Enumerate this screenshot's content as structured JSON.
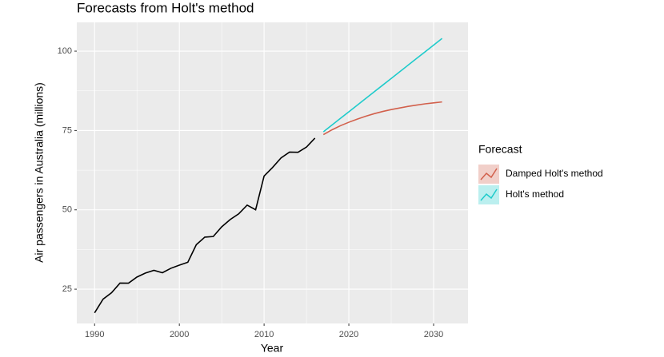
{
  "chart_data": {
    "type": "line",
    "title": "Forecasts from Holt's method",
    "x_label": "Year",
    "y_label": "Air passengers in Australia (millions)",
    "legend_title": "Forecast",
    "legend_position": "right",
    "grid": true,
    "xlim": [
      1987.9,
      2034.06
    ],
    "ylim": [
      14.2,
      109.07
    ],
    "xticks": [
      1990,
      2000,
      2010,
      2020,
      2030
    ],
    "yticks": [
      25,
      50,
      75,
      100
    ],
    "series": [
      {
        "color": "#000000",
        "x": [
          1990,
          1991,
          1992,
          1993,
          1994,
          1995,
          1996,
          1997,
          1998,
          1999,
          2000,
          2001,
          2002,
          2003,
          2004,
          2005,
          2006,
          2007,
          2008,
          2009,
          2010,
          2011,
          2012,
          2013,
          2014,
          2015,
          2016
        ],
        "values": [
          17.55,
          21.86,
          23.89,
          26.93,
          26.89,
          28.83,
          30.08,
          30.95,
          30.19,
          31.58,
          32.58,
          33.48,
          39.02,
          41.39,
          41.6,
          44.66,
          46.95,
          48.73,
          51.49,
          50.03,
          60.64,
          63.36,
          66.36,
          68.2,
          68.12,
          69.78,
          72.6
        ]
      },
      {
        "name": "Damped Holt's method",
        "color": "#d2604c",
        "x": [
          2017,
          2018,
          2019,
          2020,
          2021,
          2022,
          2023,
          2024,
          2025,
          2026,
          2027,
          2028,
          2029,
          2030,
          2031
        ],
        "values": [
          73.7,
          75.2,
          76.5,
          77.6,
          78.6,
          79.5,
          80.3,
          81.0,
          81.6,
          82.1,
          82.6,
          83.0,
          83.4,
          83.7,
          84.0
        ]
      },
      {
        "name": "Holt's method",
        "color": "#1fcbcb",
        "x": [
          2017,
          2018,
          2019,
          2020,
          2021,
          2022,
          2023,
          2024,
          2025,
          2026,
          2027,
          2028,
          2029,
          2030,
          2031
        ],
        "values": [
          74.6,
          76.7,
          78.8,
          80.9,
          83.0,
          85.1,
          87.2,
          89.3,
          91.4,
          93.5,
          95.6,
          97.7,
          99.8,
          101.9,
          104.0
        ]
      }
    ]
  }
}
